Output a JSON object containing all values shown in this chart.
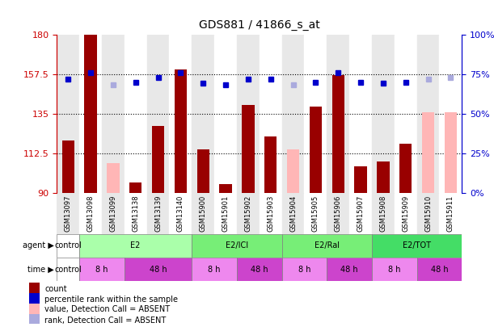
{
  "title": "GDS881 / 41866_s_at",
  "samples": [
    "GSM13097",
    "GSM13098",
    "GSM13099",
    "GSM13138",
    "GSM13139",
    "GSM13140",
    "GSM15900",
    "GSM15901",
    "GSM15902",
    "GSM15903",
    "GSM15904",
    "GSM15905",
    "GSM15906",
    "GSM15907",
    "GSM15908",
    "GSM15909",
    "GSM15910",
    "GSM15911"
  ],
  "counts": [
    120,
    180,
    null,
    96,
    128,
    160,
    115,
    95,
    140,
    122,
    null,
    139,
    157,
    105,
    108,
    118,
    null,
    null
  ],
  "counts_absent": [
    null,
    null,
    107,
    null,
    null,
    null,
    null,
    null,
    null,
    null,
    115,
    null,
    null,
    null,
    null,
    null,
    136,
    136
  ],
  "pct_ranks": [
    72,
    76,
    null,
    70,
    73,
    76,
    69,
    68,
    72,
    72,
    null,
    70,
    76,
    70,
    69,
    70,
    null,
    null
  ],
  "pct_ranks_absent": [
    null,
    null,
    68,
    null,
    null,
    null,
    null,
    null,
    null,
    null,
    68,
    null,
    null,
    null,
    null,
    null,
    72,
    73
  ],
  "ylim_left": [
    90,
    180
  ],
  "ylim_right": [
    0,
    100
  ],
  "yticks_left": [
    90,
    112.5,
    135,
    157.5,
    180
  ],
  "yticks_right": [
    0,
    25,
    50,
    75,
    100
  ],
  "grid_lines": [
    112.5,
    135,
    157.5
  ],
  "bar_color": "#990000",
  "bar_absent_color": "#ffb6b6",
  "dot_color": "#0000cc",
  "dot_absent_color": "#aaaadd",
  "agent_segments": [
    {
      "label": "control",
      "start": 0,
      "end": 1,
      "color": "#ffffff"
    },
    {
      "label": "E2",
      "start": 1,
      "end": 6,
      "color": "#aaffaa"
    },
    {
      "label": "E2/ICI",
      "start": 6,
      "end": 10,
      "color": "#77ee77"
    },
    {
      "label": "E2/Ral",
      "start": 10,
      "end": 14,
      "color": "#77ee77"
    },
    {
      "label": "E2/TOT",
      "start": 14,
      "end": 18,
      "color": "#44dd66"
    }
  ],
  "time_segments": [
    {
      "label": "control",
      "start": 0,
      "end": 1,
      "color": "#ffffff"
    },
    {
      "label": "8 h",
      "start": 1,
      "end": 3,
      "color": "#ee88ee"
    },
    {
      "label": "48 h",
      "start": 3,
      "end": 6,
      "color": "#cc44cc"
    },
    {
      "label": "8 h",
      "start": 6,
      "end": 8,
      "color": "#ee88ee"
    },
    {
      "label": "48 h",
      "start": 8,
      "end": 10,
      "color": "#cc44cc"
    },
    {
      "label": "8 h",
      "start": 10,
      "end": 12,
      "color": "#ee88ee"
    },
    {
      "label": "48 h",
      "start": 12,
      "end": 14,
      "color": "#cc44cc"
    },
    {
      "label": "8 h",
      "start": 14,
      "end": 16,
      "color": "#ee88ee"
    },
    {
      "label": "48 h",
      "start": 16,
      "end": 18,
      "color": "#cc44cc"
    }
  ],
  "legend_items": [
    {
      "label": "count",
      "color": "#990000"
    },
    {
      "label": "percentile rank within the sample",
      "color": "#0000cc"
    },
    {
      "label": "value, Detection Call = ABSENT",
      "color": "#ffb6b6"
    },
    {
      "label": "rank, Detection Call = ABSENT",
      "color": "#aaaadd"
    }
  ]
}
